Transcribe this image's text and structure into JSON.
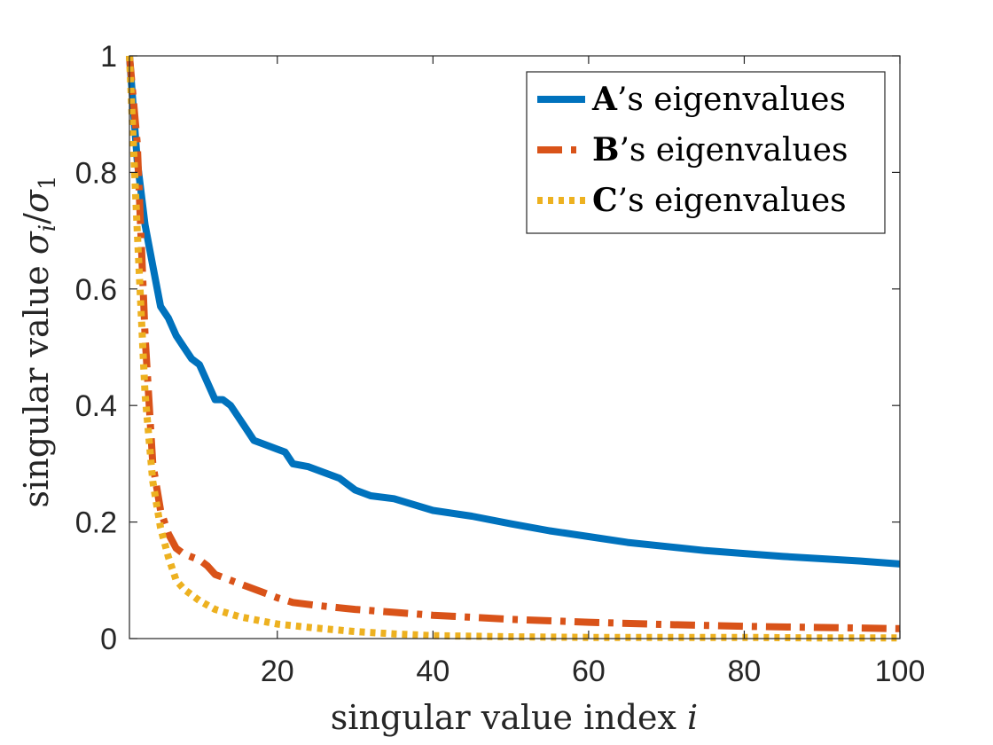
{
  "chart_data": {
    "type": "line",
    "xlabel": "singular value index i",
    "ylabel": "singular value σ_i/σ_1",
    "xlim": [
      1,
      100
    ],
    "ylim": [
      0,
      1
    ],
    "xticks": [
      20,
      40,
      60,
      80,
      100
    ],
    "yticks": [
      0,
      0.2,
      0.4,
      0.6,
      0.8,
      1
    ],
    "xtick_labels": [
      "20",
      "40",
      "60",
      "80",
      "100"
    ],
    "ytick_labels": [
      "0",
      "0.2",
      "0.4",
      "0.6",
      "0.8",
      "1"
    ],
    "grid": false,
    "legend_position": "top-right",
    "series": [
      {
        "name": "A's eigenvalues",
        "name_bold": "A",
        "name_rest": "’s eigenvalues",
        "color": "#0072BD",
        "style": "solid",
        "x": [
          1,
          2,
          3,
          4,
          5,
          6,
          7,
          8,
          9,
          10,
          11,
          12,
          13,
          14,
          15,
          16,
          17,
          18,
          20,
          21,
          22,
          24,
          26,
          28,
          30,
          32,
          35,
          40,
          45,
          50,
          55,
          60,
          65,
          70,
          75,
          80,
          85,
          90,
          95,
          100
        ],
        "values": [
          1.0,
          0.82,
          0.71,
          0.64,
          0.57,
          0.55,
          0.52,
          0.5,
          0.48,
          0.47,
          0.44,
          0.41,
          0.41,
          0.4,
          0.38,
          0.36,
          0.34,
          0.335,
          0.325,
          0.32,
          0.3,
          0.295,
          0.285,
          0.275,
          0.255,
          0.245,
          0.24,
          0.22,
          0.21,
          0.197,
          0.185,
          0.175,
          0.165,
          0.158,
          0.151,
          0.146,
          0.141,
          0.137,
          0.133,
          0.128
        ]
      },
      {
        "name": "B's eigenvalues",
        "name_bold": "B",
        "name_rest": "’s eigenvalues",
        "color": "#D95319",
        "style": "dashdot",
        "x": [
          1,
          2,
          3,
          4,
          5,
          6,
          7,
          8,
          9,
          10,
          11,
          12,
          14,
          16,
          18,
          20,
          22,
          25,
          30,
          35,
          40,
          50,
          60,
          70,
          80,
          90,
          100
        ],
        "values": [
          1.0,
          0.85,
          0.52,
          0.3,
          0.22,
          0.18,
          0.155,
          0.145,
          0.14,
          0.135,
          0.125,
          0.11,
          0.1,
          0.09,
          0.08,
          0.07,
          0.062,
          0.057,
          0.05,
          0.045,
          0.04,
          0.033,
          0.028,
          0.024,
          0.021,
          0.019,
          0.017
        ]
      },
      {
        "name": "C's eigenvalues",
        "name_bold": "C",
        "name_rest": "’s eigenvalues",
        "color": "#EDB120",
        "style": "dotted",
        "x": [
          1,
          2,
          3,
          4,
          5,
          6,
          7,
          8,
          10,
          12,
          15,
          18,
          20,
          25,
          30,
          35,
          40,
          50,
          60,
          70,
          80,
          90,
          100
        ],
        "values": [
          1.0,
          0.7,
          0.42,
          0.27,
          0.19,
          0.14,
          0.1,
          0.085,
          0.065,
          0.05,
          0.038,
          0.03,
          0.025,
          0.018,
          0.012,
          0.008,
          0.005,
          0.003,
          0.002,
          0.002,
          0.002,
          0.001,
          0.001
        ]
      }
    ]
  }
}
